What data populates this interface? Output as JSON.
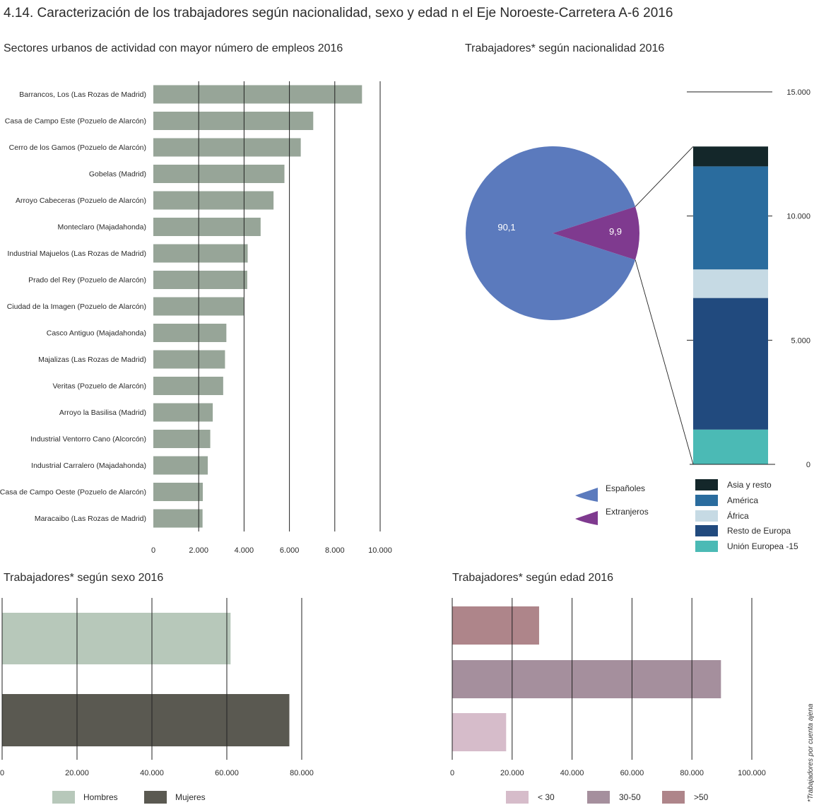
{
  "title": "4.14. Caracterización de los trabajadores según nacionalidad, sexo y edad n el Eje Noroeste-Carretera A-6  2016",
  "footnote": "*Trabajadores por cuenta ajena",
  "chart_data": [
    {
      "type": "bar",
      "orientation": "horizontal",
      "title": "Sectores urbanos de actividad con mayor número de empleos 2016",
      "categories": [
        "Barrancos, Los (Las Rozas de Madrid)",
        "Casa de Campo Este (Pozuelo de Alarcón)",
        "Cerro de los Gamos (Pozuelo de Alarcón)",
        "Gobelas (Madrid)",
        "Arroyo Cabeceras (Pozuelo de Alarcón)",
        "Monteclaro (Majadahonda)",
        "Industrial Majuelos (Las Rozas de Madrid)",
        "Prado del Rey (Pozuelo de Alarcón)",
        "Ciudad de la Imagen (Pozuelo de Alarcón)",
        "Casco Antiguo (Majadahonda)",
        "Majalizas (Las Rozas de Madrid)",
        "Veritas (Pozuelo de Alarcón)",
        "Arroyo la Basilisa (Madrid)",
        "Industrial Ventorro Cano (Alcorcón)",
        "Industrial Carralero (Majadahonda)",
        "Casa de Campo Oeste (Pozuelo de Alarcón)",
        "Maracaibo (Las Rozas de Madrid)"
      ],
      "values": [
        9200,
        7050,
        6500,
        5780,
        5300,
        4730,
        4160,
        4140,
        3990,
        3220,
        3160,
        3080,
        2620,
        2510,
        2400,
        2180,
        2170
      ],
      "xlim": [
        0,
        10000
      ],
      "ticks": [
        0,
        2000,
        4000,
        6000,
        8000,
        10000
      ],
      "tick_labels": [
        "0",
        "2.000",
        "4.000",
        "6.000",
        "8.000",
        "10.000"
      ],
      "grid": true,
      "color": "#97a598"
    },
    {
      "type": "pie",
      "title": "Trabajadores* según nacionalidad 2016",
      "slices": [
        {
          "label": "Españoles",
          "value": 90.1,
          "value_label": "90,1",
          "color": "#5b7abd"
        },
        {
          "label": "Extranjeros",
          "value": 9.9,
          "value_label": "9,9",
          "color": "#7f3a8f"
        }
      ],
      "legend": "bottom"
    },
    {
      "type": "bar",
      "orientation": "vertical-stacked",
      "title": "",
      "series": [
        {
          "name": "Unión Europea -15",
          "value": 1400,
          "color": "#4bbab5"
        },
        {
          "name": "Resto de Europa",
          "value": 5300,
          "color": "#214a7e"
        },
        {
          "name": "África",
          "value": 1150,
          "color": "#c6dae4"
        },
        {
          "name": "América",
          "value": 4150,
          "color": "#2a6c9e"
        },
        {
          "name": "Asia y resto",
          "value": 800,
          "color": "#14272a"
        }
      ],
      "ylim": [
        0,
        15000
      ],
      "ticks": [
        0,
        5000,
        10000,
        15000
      ],
      "tick_labels": [
        "0",
        "5.000",
        "10.000",
        "15.000"
      ],
      "grid": true,
      "legend": "bottom"
    },
    {
      "type": "bar",
      "orientation": "horizontal",
      "title": "Trabajadores* según sexo 2016",
      "categories": [
        "Hombres",
        "Mujeres"
      ],
      "values": [
        61000,
        76700
      ],
      "colors": [
        "#b7c8ba",
        "#5a5951"
      ],
      "xlim": [
        0,
        80000
      ],
      "ticks": [
        0,
        20000,
        40000,
        60000,
        80000
      ],
      "tick_labels": [
        "0",
        "20.000",
        "40.000",
        "60.000",
        "80.000"
      ],
      "grid": true,
      "legend": "bottom"
    },
    {
      "type": "bar",
      "orientation": "horizontal",
      "title": "Trabajadores* según edad 2016",
      "categories": [
        ">50",
        "30-50",
        "< 30"
      ],
      "values": [
        29000,
        89700,
        18000
      ],
      "colors": [
        "#ae858a",
        "#a58f9d",
        "#d6bcca"
      ],
      "xlim": [
        0,
        100000
      ],
      "ticks": [
        0,
        20000,
        40000,
        60000,
        80000,
        100000
      ],
      "tick_labels": [
        "0",
        "20.000",
        "40.000",
        "60.000",
        "80.000",
        "100.000"
      ],
      "grid": true,
      "legend": "bottom",
      "legend_order": [
        "< 30",
        "30-50",
        ">50"
      ]
    }
  ]
}
